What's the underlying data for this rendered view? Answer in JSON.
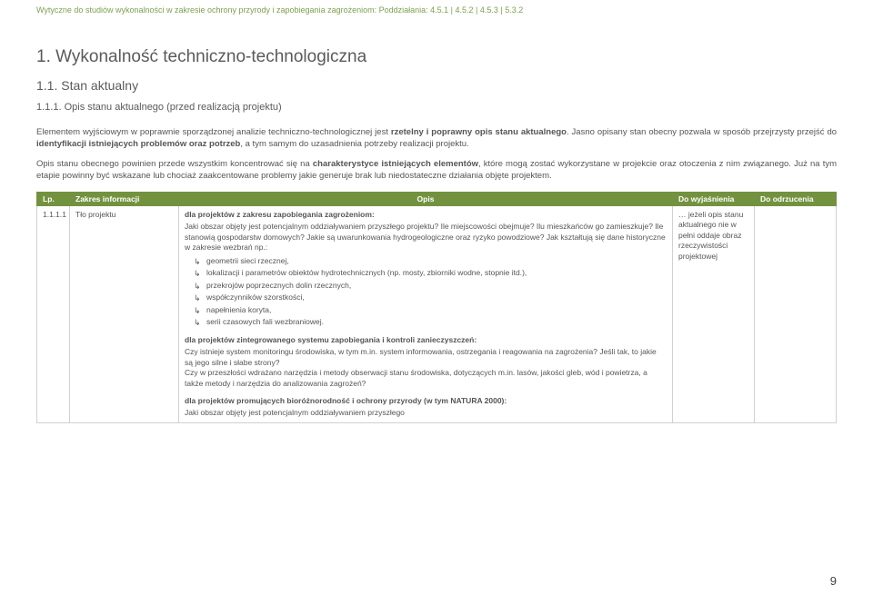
{
  "header": {
    "line": "Wytyczne do studiów wykonalności w zakresie ochrony przyrody i zapobiegania zagrożeniom: Poddziałania: 4.5.1 | 4.5.2 | 4.5.3 | 5.3.2"
  },
  "headings": {
    "h1": "1.  Wykonalność techniczno-technologiczna",
    "h2": "1.1. Stan aktualny",
    "h3": "1.1.1. Opis stanu aktualnego (przed realizacją projektu)"
  },
  "paragraphs": {
    "p1_a": "Elementem wyjściowym w poprawnie sporządzonej analizie techniczno-technologicznej jest ",
    "p1_b": "rzetelny i poprawny opis stanu aktualnego",
    "p1_c": ". Jasno opisany stan obecny pozwala w sposób przejrzysty przejść do ",
    "p1_d": "identyfikacji istniejących problemów oraz potrzeb",
    "p1_e": ", a tym samym do uzasadnienia potrzeby realizacji projektu.",
    "p2_a": "Opis stanu obecnego powinien przede wszystkim koncentrować się na ",
    "p2_b": "charakterystyce istniejących elementów",
    "p2_c": ", które mogą zostać wykorzystane w projekcie oraz otoczenia z nim związanego. Już na tym etapie powinny być wskazane lub chociaż zaakcentowane problemy jakie generuje brak lub niedostateczne działania objęte projektem."
  },
  "table": {
    "headers": {
      "lp": "Lp.",
      "zakres": "Zakres informacji",
      "opis": "Opis",
      "wyj": "Do wyjaśnienia",
      "odr": "Do odrzucenia"
    },
    "row1": {
      "lp": "1.1.1.1",
      "zakres": "Tło projektu",
      "opis": {
        "block1_title": "dla projektów z zakresu zapobiegania zagrożeniom:",
        "block1_text": "Jaki obszar objęty jest potencjalnym oddziaływaniem przyszłego projektu? Ile miejscowości obejmuje? Ilu mieszkańców go zamieszkuje? Ile stanowią gospodarstw domowych? Jakie są uwarunkowania hydrogeologiczne oraz ryzyko powodziowe? Jak kształtują się dane historyczne w zakresie wezbrań np.:",
        "bullets": [
          "geometrii sieci rzecznej,",
          "lokalizacji i parametrów obiektów hydrotechnicznych (np. mosty, zbiorniki wodne, stopnie itd.),",
          "przekrojów poprzecznych dolin rzecznych,",
          "współczynników szorstkości,",
          "napełnienia koryta,",
          "serii czasowych fali wezbraniowej."
        ],
        "block2_title": "dla projektów zintegrowanego systemu zapobiegania i kontroli zanieczyszczeń:",
        "block2_text": "Czy istnieje system monitoringu środowiska, w tym m.in. system informowania, ostrzegania i reagowania na zagrożenia? Jeśli tak, to jakie są jego silne i słabe strony?\nCzy w przeszłości wdrażano narzędzia i metody obserwacji stanu środowiska, dotyczących m.in. lasów, jakości gleb, wód i powietrza, a także metody i narzędzia do analizowania zagrożeń?",
        "block3_title": "dla projektów promujących bioróżnorodność i ochrony przyrody (w tym NATURA 2000):",
        "block3_text": "Jaki obszar objęty jest potencjalnym oddziaływaniem przyszłego"
      },
      "wyj": "… jeżeli opis stanu aktualnego nie w pełni oddaje obraz rzeczywistości projektowej",
      "odr": ""
    }
  },
  "page_number": "9",
  "colors": {
    "accent_green": "#7da050",
    "header_green": "#73923f",
    "text_gray": "#555555",
    "border_gray": "#d0d0d0"
  }
}
